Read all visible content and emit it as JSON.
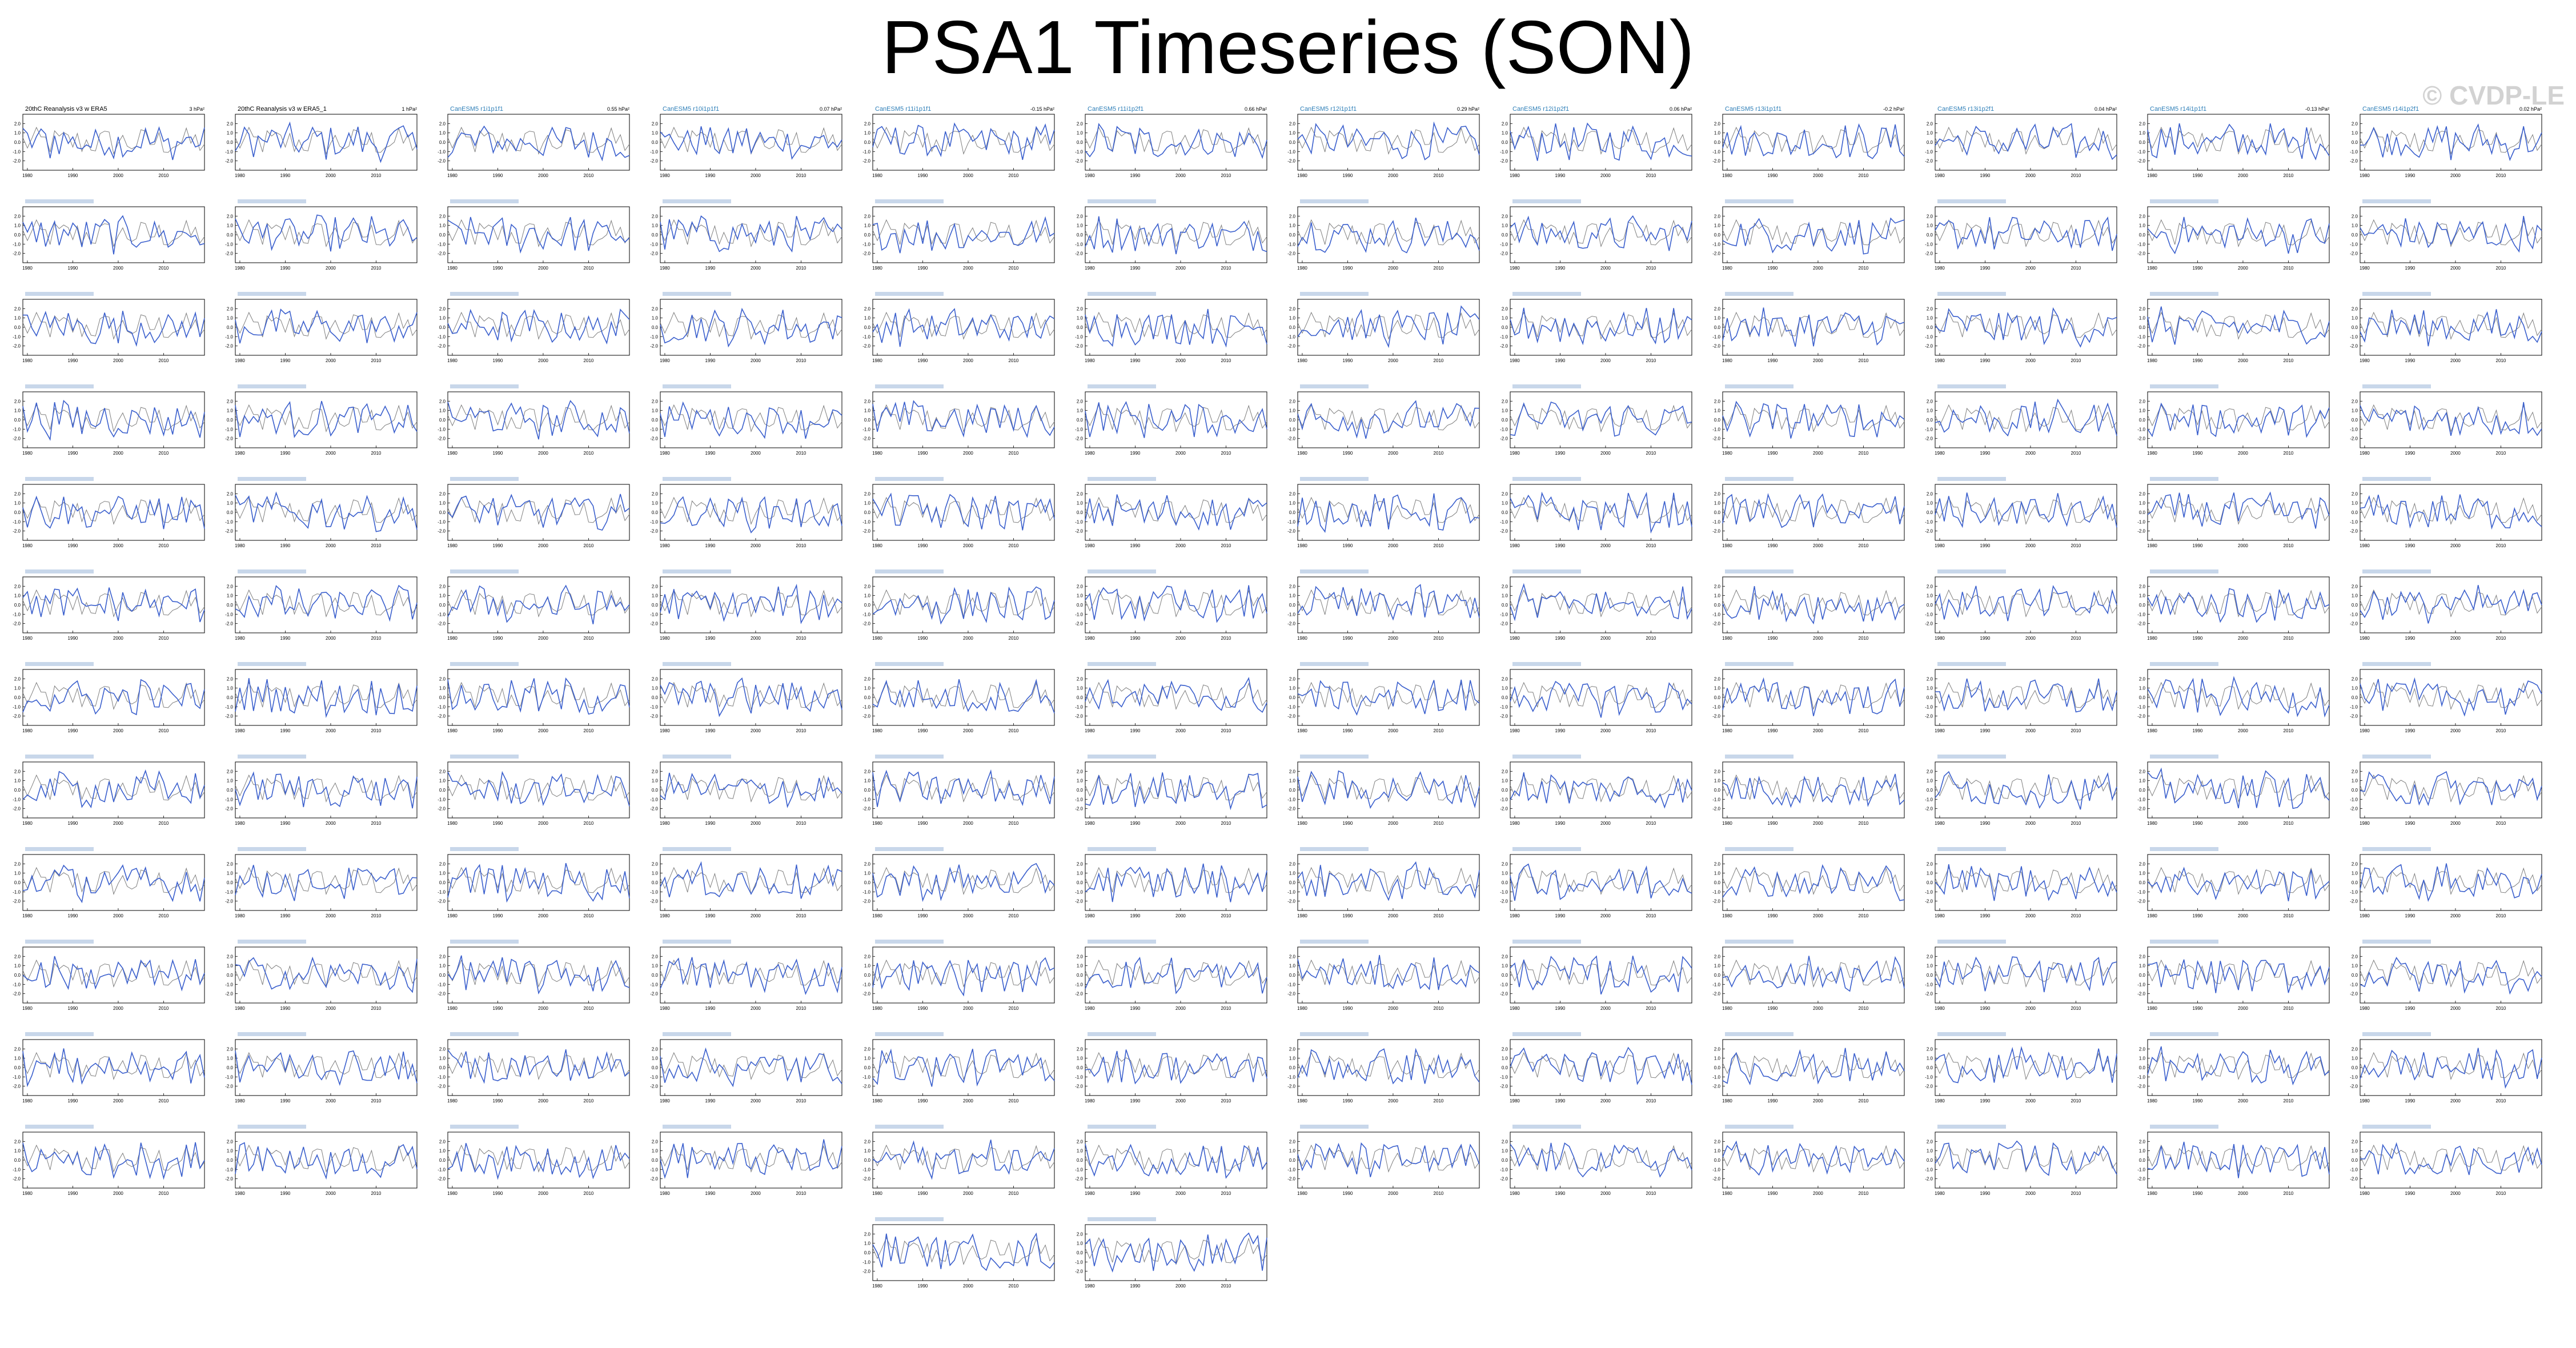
{
  "title": "PSA1 Timeseries (SON)",
  "watermark": "© CVDP-LE",
  "colors": {
    "model": "#3a5fcd",
    "obs": "#7f7f7f",
    "cesm_label": "#1f77b4",
    "group_a": "#2e7fb8",
    "group_b": "#999999",
    "group_c": "#e6a15a",
    "group_d": "#cc5533",
    "group_e": "#6b8fd6"
  },
  "chart_data": {
    "type": "line",
    "layout_note": "small multiples",
    "x_ticks": [
      "1980",
      "1990",
      "2000",
      "2010"
    ],
    "y_ticks": [
      "2.0",
      "1.0",
      "0.0",
      "-1.0",
      "-2.0"
    ],
    "x_range": [
      1979,
      2019
    ],
    "y_range": [
      -3,
      3
    ],
    "panels": [
      {
        "label": "20thC Reanalysis v3 w ERA5",
        "label_color": "#000000",
        "r": "3 hPa²"
      },
      {
        "label": "20thC Reanalysis v3 w ERA5_1",
        "label_color": "#000000",
        "r": "1 hPa²"
      },
      {
        "label": "CanESM5 r1i1p1f1",
        "label_color": "#2e7fb8",
        "r": "0.55 hPa²"
      },
      {
        "label": "CanESM5 r10i1p1f1",
        "label_color": "#2e7fb8",
        "r": "0.07 hPa²"
      },
      {
        "label": "CanESM5 r11i1p1f1",
        "label_color": "#2e7fb8",
        "r": "-0.15 hPa²"
      },
      {
        "label": "CanESM5 r11i1p2f1",
        "label_color": "#2e7fb8",
        "r": "0.66 hPa²"
      },
      {
        "label": "CanESM5 r12i1p1f1",
        "label_color": "#2e7fb8",
        "r": "0.29 hPa²"
      },
      {
        "label": "CanESM5 r12i1p2f1",
        "label_color": "#2e7fb8",
        "r": "0.06 hPa²"
      },
      {
        "label": "CanESM5 r13i1p1f1",
        "label_color": "#2e7fb8",
        "r": "-0.2 hPa²"
      },
      {
        "label": "CanESM5 r13i1p2f1",
        "label_color": "#2e7fb8",
        "r": "0.04 hPa²"
      },
      {
        "label": "CanESM5 r14i1p1f1",
        "label_color": "#2e7fb8",
        "r": "-0.13 hPa²"
      },
      {
        "label": "CanESM5 r14i1p2f1",
        "label_color": "#2e7fb8",
        "r": "0.02 hPa²"
      }
    ]
  }
}
